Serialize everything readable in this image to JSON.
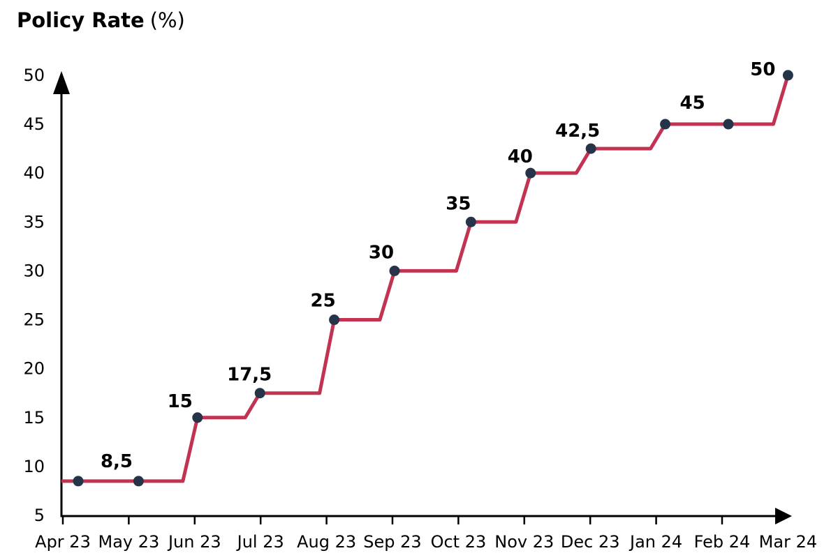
{
  "page": {
    "background": "#ffffff"
  },
  "header": {
    "title": "Policy Rate",
    "title_suffix": "(%)"
  },
  "chart_data": {
    "type": "line",
    "title": "Policy Rate (%)",
    "step_shape": "flat-then-rise-just-before-point",
    "x": [
      "Apr 23",
      "May 23",
      "Jun 23",
      "Jul 23",
      "Aug 23",
      "Sep 23",
      "Oct 23",
      "Nov 23",
      "Dec 23",
      "Jan 24",
      "Feb 24",
      "Mar 24"
    ],
    "values": [
      8.5,
      8.5,
      15,
      17.5,
      25,
      30,
      35,
      40,
      42.5,
      45,
      45,
      50
    ],
    "point_labels": [
      {
        "text": "8,5",
        "index": 0
      },
      {
        "text": "15",
        "index": 2
      },
      {
        "text": "17,5",
        "index": 3
      },
      {
        "text": "25",
        "index": 4
      },
      {
        "text": "30",
        "index": 5
      },
      {
        "text": "35",
        "index": 6
      },
      {
        "text": "40",
        "index": 7
      },
      {
        "text": "42,5",
        "index": 8
      },
      {
        "text": "45",
        "index": 9
      },
      {
        "text": "50",
        "index": 11
      }
    ],
    "xlabel": "",
    "ylabel": "Policy Rate (%)",
    "ylim": [
      5,
      50
    ],
    "yticks": [
      5,
      10,
      15,
      20,
      25,
      30,
      35,
      40,
      45,
      50
    ],
    "grid": false,
    "legend": "none",
    "style": {
      "line_color": "#c23351",
      "marker_color": "#263449",
      "axis_color": "#000000",
      "text_color": "#000000"
    }
  }
}
